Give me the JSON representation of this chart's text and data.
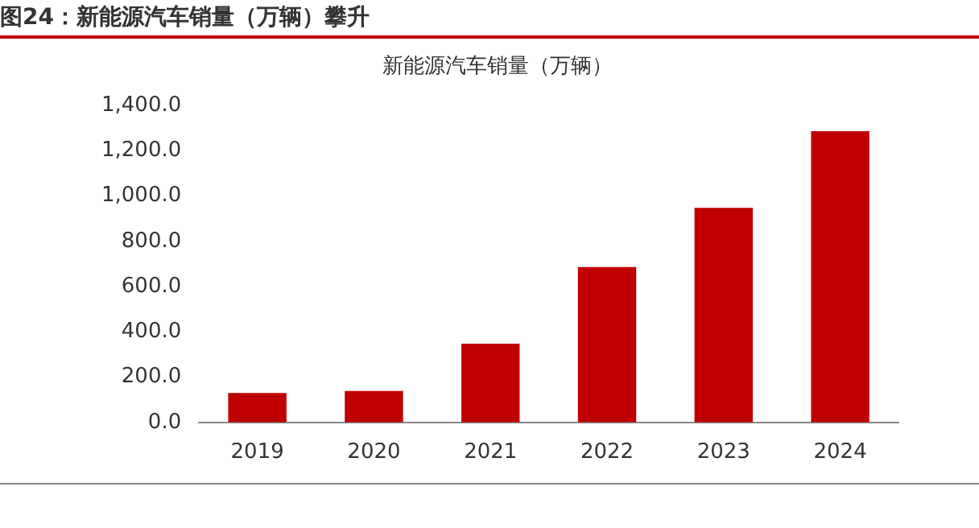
{
  "chart_data": {
    "type": "bar",
    "title": "图24：新能源汽车销量（万辆）攀升",
    "subtitle": "新能源汽车销量（万辆）",
    "categories": [
      "2019",
      "2020",
      "2021",
      "2022",
      "2023",
      "2024"
    ],
    "values": [
      130,
      139,
      348,
      687,
      948,
      1287
    ],
    "color": "#c00000",
    "ylim": [
      0,
      1400
    ],
    "yticks": [
      {
        "value": 0,
        "label": "0.0"
      },
      {
        "value": 200,
        "label": "200.0"
      },
      {
        "value": 400,
        "label": "400.0"
      },
      {
        "value": 600,
        "label": "600.0"
      },
      {
        "value": 800,
        "label": "800.0"
      },
      {
        "value": 1000,
        "label": "1,000.0"
      },
      {
        "value": 1200,
        "label": "1,200.0"
      },
      {
        "value": 1400,
        "label": "1,400.0"
      }
    ],
    "grid": false,
    "legend": false
  }
}
